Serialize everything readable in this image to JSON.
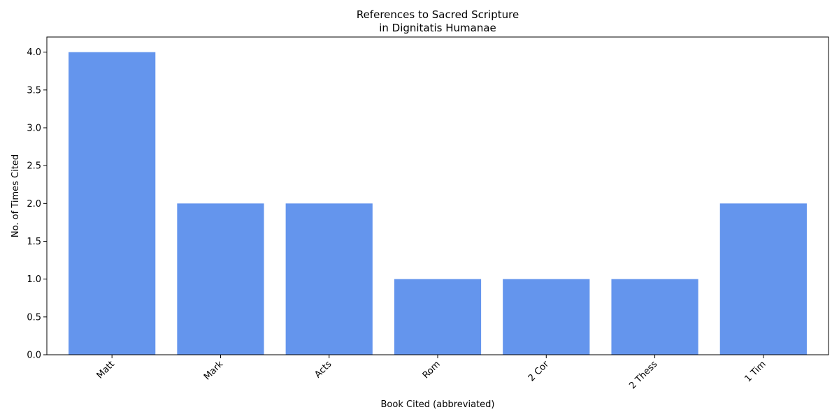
{
  "chart_data": {
    "type": "bar",
    "title_line1": "References to Sacred Scripture",
    "title_line2": "in Dignitatis Humanae",
    "xlabel": "Book Cited (abbreviated)",
    "ylabel": "No. of Times Cited",
    "categories": [
      "Matt",
      "Mark",
      "Acts",
      "Rom",
      "2 Cor",
      "2 Thess",
      "1 Tim"
    ],
    "values": [
      4,
      2,
      2,
      1,
      1,
      1,
      2
    ],
    "ylim": [
      0,
      4.2
    ],
    "yticks": [
      0.0,
      0.5,
      1.0,
      1.5,
      2.0,
      2.5,
      3.0,
      3.5,
      4.0
    ],
    "bar_color": "#6495ED",
    "grid": false,
    "legend": "none"
  }
}
